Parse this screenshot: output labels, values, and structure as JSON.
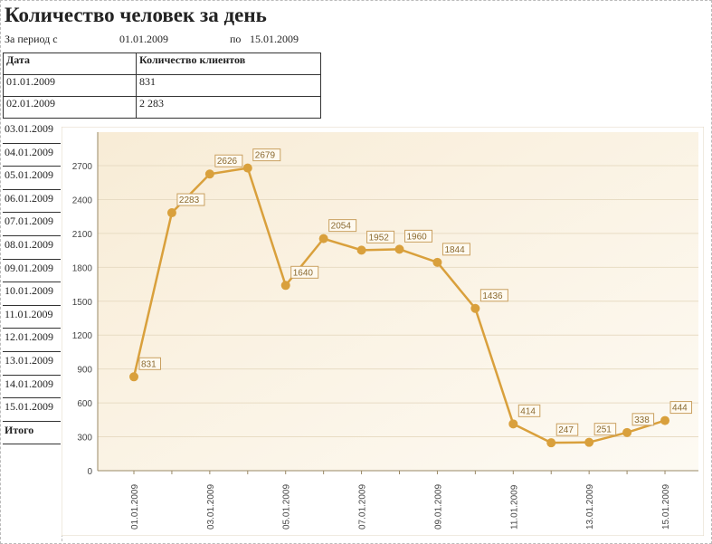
{
  "title": "Количество человек за день",
  "period": {
    "from_label": "За период с",
    "from": "01.01.2009",
    "to_label": "по",
    "to": "15.01.2009"
  },
  "table": {
    "headers": [
      "Дата",
      "Количество клиентов"
    ],
    "rows": [
      {
        "date": "01.01.2009",
        "count": "831"
      },
      {
        "date": "02.01.2009",
        "count": "2 283"
      }
    ],
    "more_dates": [
      "03.01.2009",
      "04.01.2009",
      "05.01.2009",
      "06.01.2009",
      "07.01.2009",
      "08.01.2009",
      "09.01.2009",
      "10.01.2009",
      "11.01.2009",
      "12.01.2009",
      "13.01.2009",
      "14.01.2009",
      "15.01.2009"
    ],
    "total_label": "Итого"
  },
  "chart_data": {
    "type": "line",
    "title": "",
    "xlabel": "",
    "ylabel": "",
    "categories": [
      "01.01.2009",
      "02.01.2009",
      "03.01.2009",
      "04.01.2009",
      "05.01.2009",
      "06.01.2009",
      "07.01.2009",
      "08.01.2009",
      "09.01.2009",
      "10.01.2009",
      "11.01.2009",
      "12.01.2009",
      "13.01.2009",
      "14.01.2009",
      "15.01.2009"
    ],
    "x_tick_labels": [
      "01.01.2009",
      "03.01.2009",
      "05.01.2009",
      "07.01.2009",
      "09.01.2009",
      "11.01.2009",
      "13.01.2009",
      "15.01.2009"
    ],
    "values": [
      831,
      2283,
      2626,
      2679,
      1640,
      2054,
      1952,
      1960,
      1844,
      1436,
      414,
      247,
      251,
      338,
      444
    ],
    "ylim": [
      0,
      3000
    ],
    "y_ticks": [
      0,
      300,
      600,
      900,
      1200,
      1500,
      1800,
      2100,
      2400,
      2700
    ],
    "grid": true,
    "color": "#d9a03c"
  }
}
